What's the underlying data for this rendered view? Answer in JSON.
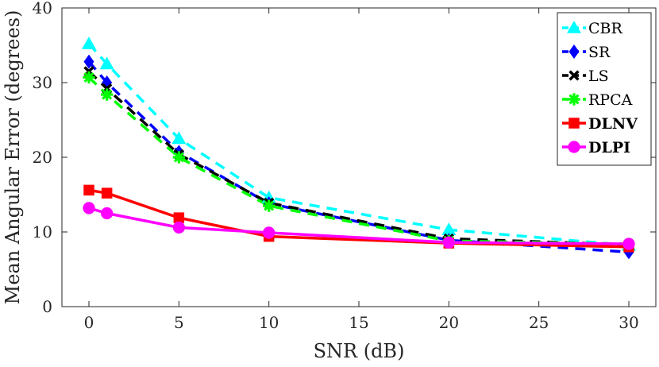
{
  "chart_data": {
    "type": "line",
    "title": "",
    "xlabel": "SNR (dB)",
    "ylabel": "Mean Angular Error (degrees)",
    "xlim": [
      -1.5,
      31.5
    ],
    "ylim": [
      0,
      40
    ],
    "xticks": [
      0,
      5,
      10,
      15,
      20,
      25,
      30
    ],
    "yticks": [
      0,
      10,
      20,
      30,
      40
    ],
    "grid": false,
    "legend_position": "top-right",
    "series": [
      {
        "name": "CBR",
        "x": [
          0,
          1,
          5,
          10,
          20,
          30
        ],
        "y": [
          35.2,
          32.5,
          22.5,
          14.6,
          10.3,
          8.2
        ],
        "color": "#00ffff",
        "line_style": "dashed",
        "marker": "triangle",
        "bold": false
      },
      {
        "name": "SR",
        "x": [
          0,
          1,
          5,
          10,
          20,
          30
        ],
        "y": [
          32.8,
          30.0,
          20.7,
          13.8,
          8.9,
          7.3
        ],
        "color": "#0000ff",
        "line_style": "dashed",
        "marker": "diamond",
        "bold": false
      },
      {
        "name": "LS",
        "x": [
          0,
          1,
          5,
          10,
          20,
          30
        ],
        "y": [
          31.5,
          29.2,
          20.4,
          13.9,
          9.1,
          8.3
        ],
        "color": "#000000",
        "line_style": "dashed",
        "marker": "x",
        "bold": false
      },
      {
        "name": "RPCA",
        "x": [
          0,
          1,
          5,
          10,
          20,
          30
        ],
        "y": [
          30.7,
          28.4,
          20.0,
          13.5,
          8.8,
          8.4
        ],
        "color": "#00ff00",
        "line_style": "dashed",
        "marker": "asterisk",
        "bold": false
      },
      {
        "name": "DLNV",
        "x": [
          0,
          1,
          5,
          10,
          20,
          30
        ],
        "y": [
          15.6,
          15.2,
          11.9,
          9.4,
          8.5,
          8.0
        ],
        "color": "#ff0000",
        "line_style": "solid",
        "marker": "square",
        "bold": true
      },
      {
        "name": "DLPI",
        "x": [
          0,
          1,
          5,
          10,
          20,
          30
        ],
        "y": [
          13.2,
          12.5,
          10.6,
          9.9,
          8.6,
          8.4
        ],
        "color": "#ff00ff",
        "line_style": "solid",
        "marker": "circle",
        "bold": true
      }
    ]
  }
}
